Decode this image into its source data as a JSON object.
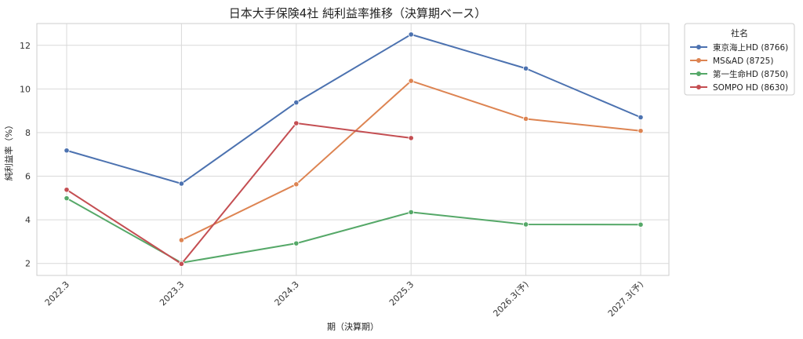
{
  "chart_data": {
    "type": "line",
    "title": "日本大手保険4社 純利益率推移（決算期ベース）",
    "xlabel": "期（決算期）",
    "ylabel": "純利益率（%）",
    "categories": [
      "2022.3",
      "2023.3",
      "2024.3",
      "2025.3",
      "2026.3(予)",
      "2027.3(予)"
    ],
    "ylim": [
      1.45,
      13.0
    ],
    "yticks": [
      2,
      4,
      6,
      8,
      10,
      12
    ],
    "grid": true,
    "legend": {
      "title": "社名",
      "placement": "outside-top-right"
    },
    "series": [
      {
        "name": "東京海上HD (8766)",
        "color": "#4c72b0",
        "values": [
          7.18,
          5.66,
          9.38,
          12.5,
          10.94,
          8.7
        ]
      },
      {
        "name": "MS&AD (8725)",
        "color": "#dd8452",
        "values": [
          null,
          3.07,
          5.63,
          10.37,
          8.63,
          8.08
        ]
      },
      {
        "name": "第一生命HD (8750)",
        "color": "#55a868",
        "values": [
          4.99,
          2.03,
          2.92,
          4.35,
          3.79,
          3.78
        ]
      },
      {
        "name": "SOMPO HD (8630)",
        "color": "#c44e52",
        "values": [
          5.38,
          1.98,
          8.43,
          7.75,
          null,
          null
        ]
      }
    ]
  }
}
